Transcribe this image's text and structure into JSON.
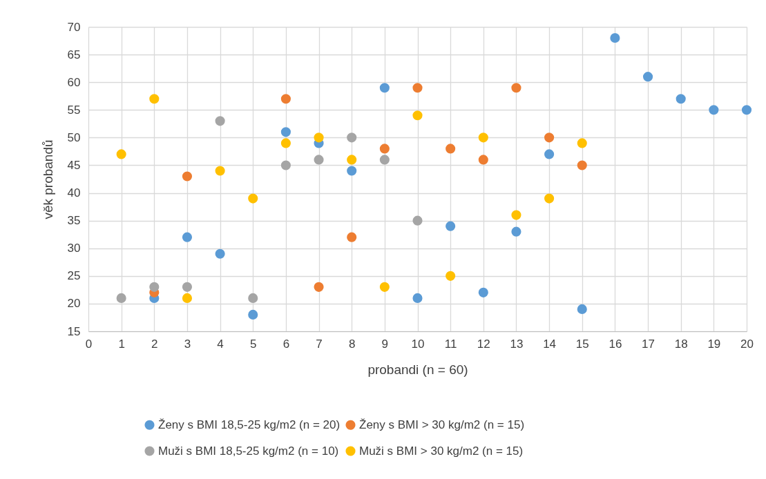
{
  "chart_data": {
    "type": "scatter",
    "xlabel": "probandi (n = 60)",
    "ylabel": "věk probandů",
    "xlim": [
      0,
      20
    ],
    "xticks": [
      0,
      1,
      2,
      3,
      4,
      5,
      6,
      7,
      8,
      9,
      10,
      11,
      12,
      13,
      14,
      15,
      16,
      17,
      18,
      19,
      20
    ],
    "ylim": [
      15,
      70
    ],
    "yticks": [
      15,
      20,
      25,
      30,
      35,
      40,
      45,
      50,
      55,
      60,
      65,
      70
    ],
    "grid": true,
    "legend": "bottom",
    "marker": "circle",
    "series": [
      {
        "name": "Ženy s BMI 18,5-25 kg/m2 (n = 20)",
        "color": "#5b9bd5",
        "x": [
          2,
          3,
          4,
          5,
          6,
          7,
          8,
          9,
          10,
          11,
          12,
          13,
          14,
          15,
          16,
          17,
          18,
          19,
          20
        ],
        "values": [
          21,
          32,
          29,
          18,
          51,
          49,
          44,
          59,
          21,
          34,
          22,
          33,
          47,
          19,
          68,
          61,
          57,
          55,
          55
        ]
      },
      {
        "name": "Ženy s BMI > 30 kg/m2 (n = 15)",
        "color": "#ed7d31",
        "x": [
          2,
          3,
          6,
          7,
          8,
          9,
          10,
          11,
          12,
          13,
          14,
          15
        ],
        "values": [
          22,
          43,
          57,
          23,
          32,
          48,
          59,
          48,
          46,
          59,
          50,
          45
        ]
      },
      {
        "name": "Muži s BMI 18,5-25 kg/m2 (n = 10)",
        "color": "#a5a5a5",
        "x": [
          1,
          2,
          3,
          4,
          5,
          6,
          7,
          8,
          9,
          10
        ],
        "values": [
          21,
          23,
          23,
          53,
          21,
          45,
          46,
          50,
          46,
          35
        ]
      },
      {
        "name": "Muži s BMI > 30 kg/m2 (n = 15)",
        "color": "#ffc000",
        "x": [
          1,
          2,
          3,
          4,
          5,
          6,
          7,
          8,
          9,
          10,
          11,
          12,
          13,
          14,
          15
        ],
        "values": [
          47,
          57,
          21,
          44,
          39,
          49,
          50,
          46,
          23,
          54,
          25,
          50,
          36,
          39,
          49
        ]
      }
    ]
  }
}
